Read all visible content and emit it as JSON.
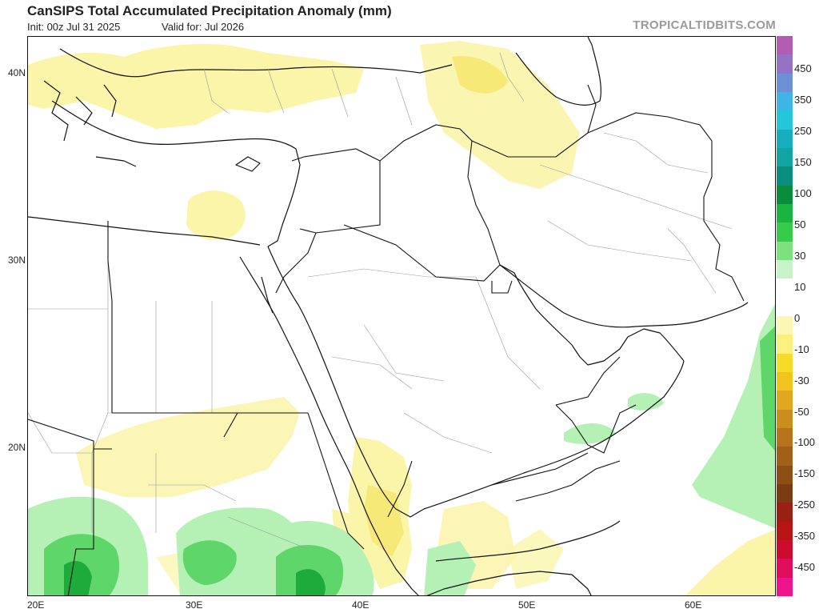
{
  "header": {
    "title": "CanSIPS Total Accumulated Precipitation Anomaly (mm)",
    "init": "Init: 00z Jul 31 2025",
    "valid": "Valid for: Jul 2026",
    "brand": "TROPICALTIDBITS.COM"
  },
  "axes": {
    "y_labels": [
      "40N",
      "30N",
      "20N"
    ],
    "x_labels": [
      "20E",
      "30E",
      "40E",
      "50E",
      "60E"
    ]
  },
  "colorbar": {
    "labels": [
      "450",
      "350",
      "250",
      "150",
      "100",
      "50",
      "30",
      "10",
      "0",
      "-10",
      "-30",
      "-50",
      "-100",
      "-150",
      "-250",
      "-350",
      "-450"
    ],
    "colors": [
      "#b45cb4",
      "#9572c4",
      "#6d8fd6",
      "#3fb5e6",
      "#26c6da",
      "#16aebf",
      "#12a3a3",
      "#0a8c7e",
      "#0a8c3c",
      "#18b640",
      "#36cc4a",
      "#7fe07f",
      "#c8f2c8",
      "#ffffff",
      "#ffffff",
      "#fcf7b4",
      "#fbef7e",
      "#f4dc28",
      "#f0c41c",
      "#e0a81f",
      "#c98e1e",
      "#b5741c",
      "#a06018",
      "#8c4e14",
      "#7a3c12",
      "#9a2014",
      "#b81414",
      "#cc0c2c",
      "#e00c5c",
      "#f0148c"
    ]
  },
  "map": {
    "region": "Middle East",
    "dry_color": "#faf5a8",
    "wet_color": "#b5f0b5",
    "wet_strong_color": "#5fd66a"
  }
}
